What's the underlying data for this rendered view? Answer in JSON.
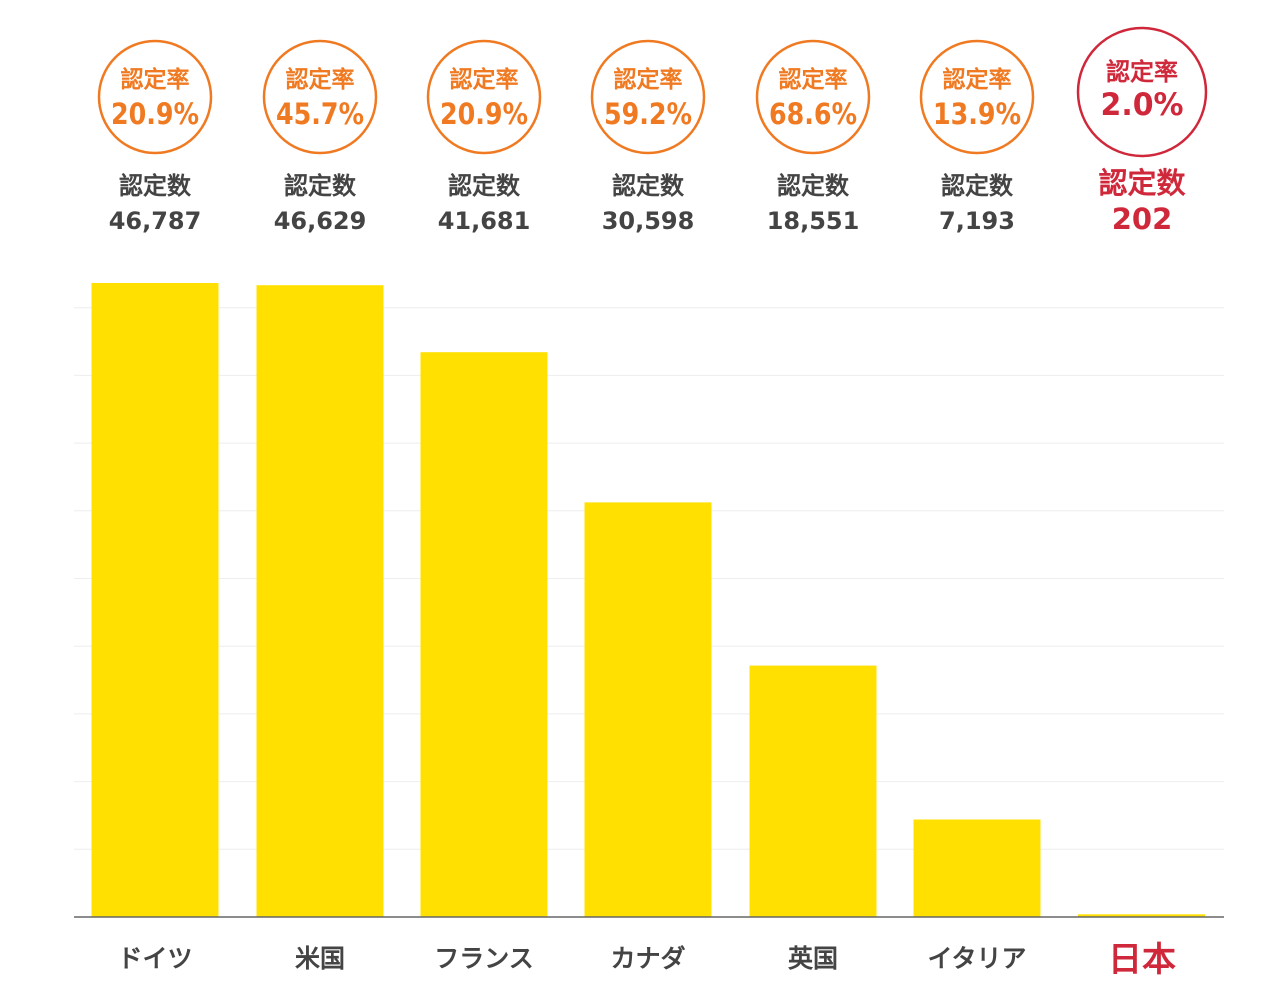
{
  "chart_data": {
    "type": "bar",
    "categories": [
      "ドイツ",
      "米国",
      "フランス",
      "カナダ",
      "英国",
      "イタリア",
      "日本"
    ],
    "values": [
      46787,
      46629,
      41681,
      30598,
      18551,
      7193,
      202
    ],
    "value_labels": [
      "46,787",
      "46,629",
      "41,681",
      "30,598",
      "18,551",
      "7,193",
      "202"
    ],
    "rates": [
      "20.9%",
      "45.7%",
      "20.9%",
      "59.2%",
      "68.6%",
      "13.9%",
      "2.0%"
    ],
    "rate_label": "認定率",
    "count_label": "認定数",
    "highlight_index": 6,
    "ylim": [
      0,
      50000
    ],
    "grid": true,
    "title": "",
    "xlabel": "",
    "ylabel": ""
  },
  "colors": {
    "bar": "#FFE000",
    "rate_circle": "#F07A22",
    "highlight": "#D0283B",
    "count_text": "#444444",
    "axis": "#666666",
    "grid": "#EEEEEE"
  }
}
